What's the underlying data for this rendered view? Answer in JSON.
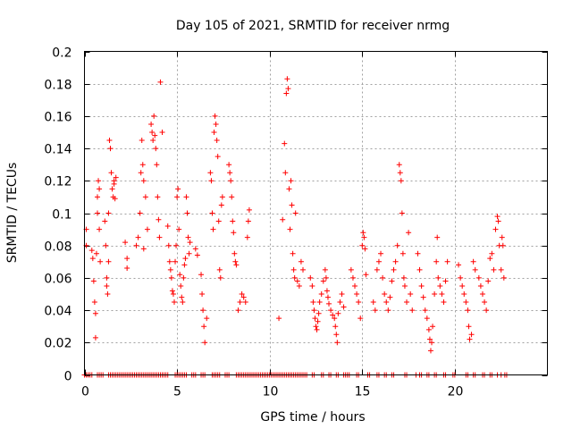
{
  "chart_data": {
    "type": "scatter",
    "title": "Day 105 of 2021, SRMTID for receiver nrmg",
    "xlabel": "GPS time / hours",
    "ylabel": "SRMTID / TECUs",
    "xlim": [
      0,
      25
    ],
    "ylim": [
      0,
      0.2
    ],
    "xticks": [
      0,
      5,
      10,
      15,
      20
    ],
    "yticks": [
      0,
      0.02,
      0.04,
      0.06,
      0.08,
      0.1,
      0.12,
      0.14,
      0.16,
      0.18,
      0.2
    ],
    "marker": "plus",
    "color": "#ff0000",
    "series": [
      {
        "name": "SRMTID",
        "points": [
          [
            0.1,
            0.09
          ],
          [
            0.1,
            0.08
          ],
          [
            0.4,
            0.077
          ],
          [
            0.45,
            0.072
          ],
          [
            0.5,
            0.058
          ],
          [
            0.55,
            0.045
          ],
          [
            0.6,
            0.038
          ],
          [
            0.6,
            0.023
          ],
          [
            0.65,
            0.075
          ],
          [
            0.7,
            0.1
          ],
          [
            0.7,
            0.11
          ],
          [
            0.75,
            0.12
          ],
          [
            0.8,
            0.115
          ],
          [
            0.8,
            0.09
          ],
          [
            0.85,
            0.07
          ],
          [
            1.1,
            0.095
          ],
          [
            1.15,
            0.08
          ],
          [
            1.2,
            0.06
          ],
          [
            1.2,
            0.055
          ],
          [
            1.25,
            0.05
          ],
          [
            1.3,
            0.07
          ],
          [
            1.3,
            0.1
          ],
          [
            1.35,
            0.145
          ],
          [
            1.4,
            0.14
          ],
          [
            1.45,
            0.125
          ],
          [
            1.5,
            0.115
          ],
          [
            1.55,
            0.11
          ],
          [
            1.6,
            0.12
          ],
          [
            1.6,
            0.118
          ],
          [
            1.65,
            0.109
          ],
          [
            1.7,
            0.122
          ],
          [
            2.2,
            0.082
          ],
          [
            2.3,
            0.066
          ],
          [
            2.3,
            0.072
          ],
          [
            2.8,
            0.08
          ],
          [
            2.9,
            0.085
          ],
          [
            3.0,
            0.1
          ],
          [
            3.05,
            0.125
          ],
          [
            3.1,
            0.145
          ],
          [
            3.15,
            0.13
          ],
          [
            3.2,
            0.12
          ],
          [
            3.2,
            0.078
          ],
          [
            3.3,
            0.11
          ],
          [
            3.4,
            0.09
          ],
          [
            3.6,
            0.155
          ],
          [
            3.65,
            0.15
          ],
          [
            3.7,
            0.145
          ],
          [
            3.75,
            0.16
          ],
          [
            3.8,
            0.148
          ],
          [
            3.85,
            0.14
          ],
          [
            3.9,
            0.13
          ],
          [
            3.95,
            0.11
          ],
          [
            4.0,
            0.096
          ],
          [
            4.05,
            0.085
          ],
          [
            4.1,
            0.181
          ],
          [
            4.2,
            0.15
          ],
          [
            4.5,
            0.092
          ],
          [
            4.55,
            0.08
          ],
          [
            4.6,
            0.07
          ],
          [
            4.65,
            0.065
          ],
          [
            4.7,
            0.06
          ],
          [
            4.75,
            0.052
          ],
          [
            4.8,
            0.05
          ],
          [
            4.85,
            0.045
          ],
          [
            4.9,
            0.07
          ],
          [
            4.95,
            0.08
          ],
          [
            5.0,
            0.11
          ],
          [
            5.05,
            0.115
          ],
          [
            5.1,
            0.09
          ],
          [
            5.15,
            0.062
          ],
          [
            5.2,
            0.055
          ],
          [
            5.25,
            0.048
          ],
          [
            5.3,
            0.045
          ],
          [
            5.35,
            0.06
          ],
          [
            5.4,
            0.068
          ],
          [
            5.45,
            0.072
          ],
          [
            5.5,
            0.11
          ],
          [
            5.55,
            0.1
          ],
          [
            5.6,
            0.085
          ],
          [
            5.65,
            0.075
          ],
          [
            5.7,
            0.082
          ],
          [
            6.0,
            0.078
          ],
          [
            6.1,
            0.074
          ],
          [
            6.3,
            0.062
          ],
          [
            6.35,
            0.05
          ],
          [
            6.4,
            0.04
          ],
          [
            6.45,
            0.03
          ],
          [
            6.5,
            0.02
          ],
          [
            6.6,
            0.035
          ],
          [
            6.8,
            0.125
          ],
          [
            6.85,
            0.12
          ],
          [
            6.9,
            0.1
          ],
          [
            6.95,
            0.09
          ],
          [
            7.0,
            0.15
          ],
          [
            7.05,
            0.16
          ],
          [
            7.1,
            0.155
          ],
          [
            7.15,
            0.145
          ],
          [
            7.2,
            0.135
          ],
          [
            7.25,
            0.095
          ],
          [
            7.3,
            0.065
          ],
          [
            7.35,
            0.06
          ],
          [
            7.4,
            0.105
          ],
          [
            7.45,
            0.11
          ],
          [
            7.8,
            0.13
          ],
          [
            7.85,
            0.125
          ],
          [
            7.9,
            0.12
          ],
          [
            7.95,
            0.11
          ],
          [
            8.0,
            0.095
          ],
          [
            8.05,
            0.088
          ],
          [
            8.1,
            0.075
          ],
          [
            8.15,
            0.07
          ],
          [
            8.2,
            0.068
          ],
          [
            8.3,
            0.04
          ],
          [
            8.4,
            0.045
          ],
          [
            8.5,
            0.05
          ],
          [
            8.6,
            0.048
          ],
          [
            8.7,
            0.045
          ],
          [
            8.8,
            0.085
          ],
          [
            8.85,
            0.095
          ],
          [
            8.9,
            0.102
          ],
          [
            10.5,
            0.035
          ],
          [
            10.7,
            0.096
          ],
          [
            10.8,
            0.143
          ],
          [
            10.85,
            0.125
          ],
          [
            10.9,
            0.174
          ],
          [
            10.95,
            0.183
          ],
          [
            11.0,
            0.177
          ],
          [
            11.05,
            0.115
          ],
          [
            11.1,
            0.09
          ],
          [
            11.15,
            0.12
          ],
          [
            11.2,
            0.105
          ],
          [
            11.25,
            0.075
          ],
          [
            11.3,
            0.065
          ],
          [
            11.35,
            0.06
          ],
          [
            11.4,
            0.1
          ],
          [
            11.5,
            0.058
          ],
          [
            11.6,
            0.055
          ],
          [
            11.7,
            0.07
          ],
          [
            11.8,
            0.065
          ],
          [
            12.2,
            0.06
          ],
          [
            12.3,
            0.055
          ],
          [
            12.35,
            0.045
          ],
          [
            12.4,
            0.04
          ],
          [
            12.45,
            0.035
          ],
          [
            12.5,
            0.03
          ],
          [
            12.55,
            0.028
          ],
          [
            12.6,
            0.033
          ],
          [
            12.65,
            0.038
          ],
          [
            12.7,
            0.045
          ],
          [
            12.8,
            0.05
          ],
          [
            12.9,
            0.058
          ],
          [
            13.0,
            0.065
          ],
          [
            13.05,
            0.06
          ],
          [
            13.1,
            0.052
          ],
          [
            13.15,
            0.048
          ],
          [
            13.2,
            0.044
          ],
          [
            13.3,
            0.04
          ],
          [
            13.4,
            0.037
          ],
          [
            13.5,
            0.035
          ],
          [
            13.55,
            0.03
          ],
          [
            13.6,
            0.025
          ],
          [
            13.65,
            0.02
          ],
          [
            13.7,
            0.038
          ],
          [
            13.8,
            0.045
          ],
          [
            13.9,
            0.05
          ],
          [
            14.0,
            0.042
          ],
          [
            14.4,
            0.065
          ],
          [
            14.5,
            0.06
          ],
          [
            14.6,
            0.055
          ],
          [
            14.7,
            0.05
          ],
          [
            14.8,
            0.045
          ],
          [
            14.9,
            0.035
          ],
          [
            15.0,
            0.08
          ],
          [
            15.05,
            0.088
          ],
          [
            15.1,
            0.085
          ],
          [
            15.15,
            0.078
          ],
          [
            15.2,
            0.062
          ],
          [
            15.6,
            0.045
          ],
          [
            15.7,
            0.04
          ],
          [
            15.8,
            0.065
          ],
          [
            15.9,
            0.07
          ],
          [
            16.0,
            0.075
          ],
          [
            16.1,
            0.06
          ],
          [
            16.2,
            0.05
          ],
          [
            16.3,
            0.045
          ],
          [
            16.4,
            0.04
          ],
          [
            16.5,
            0.048
          ],
          [
            16.6,
            0.058
          ],
          [
            16.7,
            0.065
          ],
          [
            16.8,
            0.07
          ],
          [
            16.9,
            0.08
          ],
          [
            17.0,
            0.13
          ],
          [
            17.05,
            0.125
          ],
          [
            17.1,
            0.12
          ],
          [
            17.15,
            0.1
          ],
          [
            17.2,
            0.075
          ],
          [
            17.25,
            0.06
          ],
          [
            17.3,
            0.055
          ],
          [
            17.4,
            0.045
          ],
          [
            17.5,
            0.088
          ],
          [
            17.6,
            0.05
          ],
          [
            17.7,
            0.04
          ],
          [
            18.0,
            0.075
          ],
          [
            18.1,
            0.065
          ],
          [
            18.2,
            0.055
          ],
          [
            18.3,
            0.048
          ],
          [
            18.4,
            0.04
          ],
          [
            18.5,
            0.035
          ],
          [
            18.6,
            0.028
          ],
          [
            18.65,
            0.022
          ],
          [
            18.7,
            0.015
          ],
          [
            18.75,
            0.02
          ],
          [
            18.8,
            0.03
          ],
          [
            18.9,
            0.05
          ],
          [
            19.0,
            0.07
          ],
          [
            19.05,
            0.085
          ],
          [
            19.1,
            0.06
          ],
          [
            19.2,
            0.055
          ],
          [
            19.3,
            0.05
          ],
          [
            19.4,
            0.045
          ],
          [
            19.5,
            0.058
          ],
          [
            19.6,
            0.07
          ],
          [
            20.2,
            0.068
          ],
          [
            20.3,
            0.06
          ],
          [
            20.4,
            0.055
          ],
          [
            20.5,
            0.05
          ],
          [
            20.6,
            0.045
          ],
          [
            20.7,
            0.04
          ],
          [
            20.75,
            0.03
          ],
          [
            20.8,
            0.022
          ],
          [
            20.9,
            0.025
          ],
          [
            21.0,
            0.07
          ],
          [
            21.1,
            0.065
          ],
          [
            21.3,
            0.06
          ],
          [
            21.4,
            0.055
          ],
          [
            21.5,
            0.05
          ],
          [
            21.6,
            0.045
          ],
          [
            21.7,
            0.04
          ],
          [
            21.8,
            0.058
          ],
          [
            21.9,
            0.072
          ],
          [
            22.0,
            0.075
          ],
          [
            22.1,
            0.065
          ],
          [
            22.2,
            0.09
          ],
          [
            22.3,
            0.098
          ],
          [
            22.35,
            0.095
          ],
          [
            22.4,
            0.08
          ],
          [
            22.5,
            0.065
          ],
          [
            22.55,
            0.085
          ],
          [
            22.6,
            0.08
          ],
          [
            22.65,
            0.06
          ]
        ],
        "zero_point_times": [
          0.0,
          0.1,
          0.2,
          0.3,
          0.4,
          0.7,
          0.8,
          0.9,
          1.0,
          1.3,
          1.4,
          1.5,
          1.6,
          1.7,
          1.8,
          1.9,
          2.0,
          2.1,
          2.2,
          2.3,
          2.4,
          2.5,
          2.6,
          2.7,
          2.8,
          2.9,
          3.0,
          3.1,
          3.2,
          3.3,
          3.4,
          3.5,
          3.6,
          3.7,
          3.8,
          3.9,
          4.0,
          4.1,
          4.2,
          4.3,
          4.4,
          4.5,
          4.9,
          5.0,
          5.1,
          5.2,
          5.3,
          5.4,
          5.5,
          5.8,
          5.9,
          6.0,
          6.3,
          6.4,
          6.5,
          6.9,
          7.0,
          7.1,
          7.2,
          7.3,
          7.6,
          7.7,
          7.8,
          8.2,
          8.3,
          8.4,
          8.5,
          8.6,
          8.7,
          8.8,
          8.9,
          9.0,
          9.1,
          9.2,
          9.3,
          9.4,
          9.5,
          9.6,
          9.7,
          9.8,
          9.9,
          10.0,
          10.1,
          10.2,
          10.3,
          10.4,
          10.5,
          10.6,
          10.7,
          10.8,
          10.9,
          11.0,
          11.1,
          11.2,
          11.3,
          11.4,
          11.5,
          11.6,
          11.7,
          11.8,
          11.9,
          12.0,
          12.3,
          12.4,
          12.8,
          12.9,
          13.2,
          13.3,
          13.6,
          13.7,
          14.0,
          14.1,
          14.2,
          14.3,
          14.7,
          14.8,
          15.3,
          15.4,
          15.8,
          15.9,
          16.2,
          16.3,
          16.6,
          16.7,
          17.3,
          17.4,
          17.9,
          18.1,
          18.2,
          18.5,
          18.6,
          18.9,
          19.0,
          19.4,
          19.5,
          19.9,
          20.0,
          20.6,
          20.7,
          21.0,
          21.1,
          21.5,
          21.6,
          21.9,
          22.0,
          22.3,
          22.5,
          22.7,
          22.8
        ]
      }
    ]
  }
}
